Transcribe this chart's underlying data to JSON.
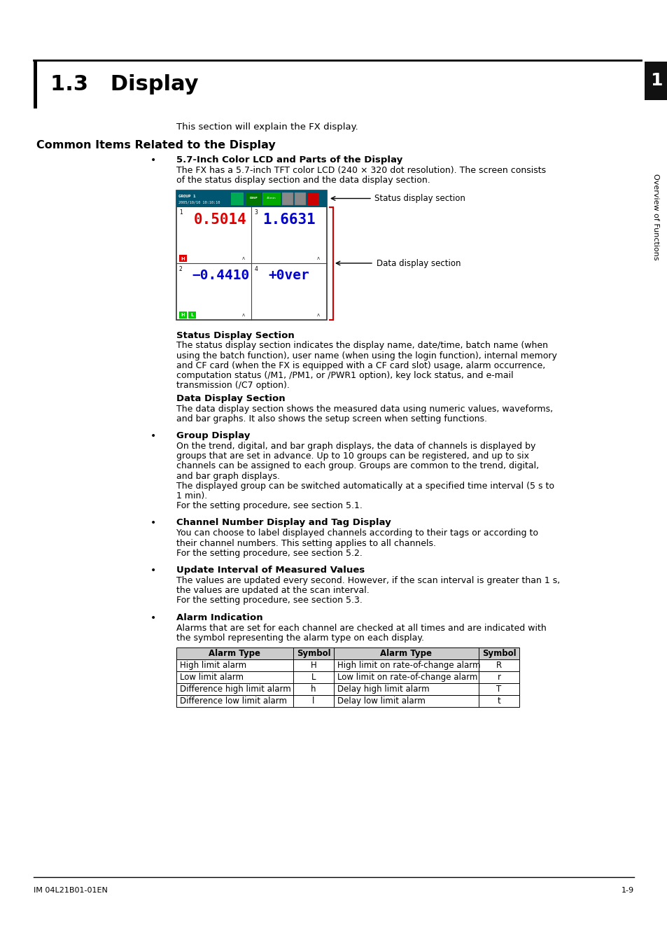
{
  "title": "1.3   Display",
  "section_intro": "This section will explain the FX display.",
  "section_heading": "Common Items Related to the Display",
  "bullet1_bold": "5.7-Inch Color LCD and Parts of the Display",
  "bullet1_text_line1": "The FX has a 5.7-inch TFT color LCD (240 × 320 dot resolution). The screen consists",
  "bullet1_text_line2": "of the status display section and the data display section.",
  "status_label": "Status display section",
  "data_label": "Data display section",
  "status_section_bold": "Status Display Section",
  "status_section_lines": [
    "The status display section indicates the display name, date/time, batch name (when",
    "using the batch function), user name (when using the login function), internal memory",
    "and CF card (when the FX is equipped with a CF card slot) usage, alarm occurrence,",
    "computation status (/M1, /PM1, or /PWR1 option), key lock status, and e-mail",
    "transmission (/C7 option)."
  ],
  "data_section_bold": "Data Display Section",
  "data_section_lines": [
    "The data display section shows the measured data using numeric values, waveforms,",
    "and bar graphs. It also shows the setup screen when setting functions."
  ],
  "bullet2_bold": "Group Display",
  "bullet2_lines": [
    "On the trend, digital, and bar graph displays, the data of channels is displayed by",
    "groups that are set in advance. Up to 10 groups can be registered, and up to six",
    "channels can be assigned to each group. Groups are common to the trend, digital,",
    "and bar graph displays.",
    "The displayed group can be switched automatically at a specified time interval (5 s to",
    "1 min).",
    "For the setting procedure, see section 5.1."
  ],
  "bullet3_bold": "Channel Number Display and Tag Display",
  "bullet3_lines": [
    "You can choose to label displayed channels according to their tags or according to",
    "their channel numbers. This setting applies to all channels.",
    "For the setting procedure, see section 5.2."
  ],
  "bullet4_bold": "Update Interval of Measured Values",
  "bullet4_lines": [
    "The values are updated every second. However, if the scan interval is greater than 1 s,",
    "the values are updated at the scan interval.",
    "For the setting procedure, see section 5.3."
  ],
  "bullet5_bold": "Alarm Indication",
  "bullet5_lines": [
    "Alarms that are set for each channel are checked at all times and are indicated with",
    "the symbol representing the alarm type on each display."
  ],
  "table_headers": [
    "Alarm Type",
    "Symbol",
    "Alarm Type",
    "Symbol"
  ],
  "table_col_aligns": [
    "left",
    "center",
    "left",
    "center"
  ],
  "table_rows": [
    [
      "High limit alarm",
      "H",
      "High limit on rate-of-change alarm",
      "R"
    ],
    [
      "Low limit alarm",
      "L",
      "Low limit on rate-of-change alarm",
      "r"
    ],
    [
      "Difference high limit alarm",
      "h",
      "Delay high limit alarm",
      "T"
    ],
    [
      "Difference low limit alarm",
      "l",
      "Delay low limit alarm",
      "t"
    ]
  ],
  "footer_left": "IM 04L21B01-01EN",
  "footer_right": "1-9",
  "sidebar_text": "Overview of Functions",
  "sidebar_num": "1",
  "bg_color": "#ffffff"
}
